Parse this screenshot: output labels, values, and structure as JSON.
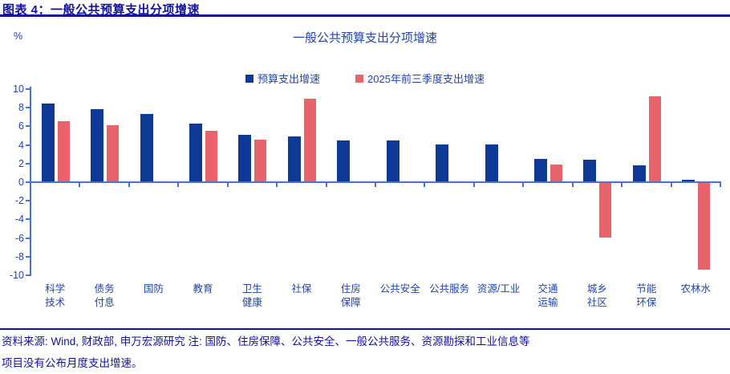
{
  "header": {
    "title": "图表 4：一般公共预算支出分项增速"
  },
  "footer": {
    "line1": "资料来源: Wind, 财政部, 申万宏源研究 注: 国防、住房保障、公共安全、一般公共服务、资源勘探和工业信息等",
    "line2": "项目没有公布月度支出增速。"
  },
  "colors": {
    "navy_text": "#12129b",
    "chart_text": "#2445a3",
    "axis_line": "#4a74cc",
    "budget_bar": "#0e3a96",
    "ytd_bar": "#e8636b"
  },
  "chart_data": {
    "type": "bar",
    "title": "一般公共预算支出分项增速",
    "unit_label": "%",
    "categories": [
      "科学技术",
      "债务付息",
      "国防",
      "教育",
      "卫生健康",
      "社保",
      "住房保障",
      "公共安全",
      "公共服务",
      "资源/工业",
      "交通运输",
      "城乡社区",
      "节能环保",
      "农林水"
    ],
    "category_label_lines": [
      [
        "科学",
        "技术"
      ],
      [
        "债务",
        "付息"
      ],
      [
        "国防"
      ],
      [
        "教育"
      ],
      [
        "卫生",
        "健康"
      ],
      [
        "社保"
      ],
      [
        "住房",
        "保障"
      ],
      [
        "公共安全"
      ],
      [
        "公共服务"
      ],
      [
        "资源/工业"
      ],
      [
        "交通",
        "运输"
      ],
      [
        "城乡",
        "社区"
      ],
      [
        "节能",
        "环保"
      ],
      [
        "农林水"
      ]
    ],
    "series": [
      {
        "name": "预算支出增速",
        "color": "#0e3a96",
        "values": [
          8.4,
          7.8,
          7.2,
          6.2,
          5.0,
          4.8,
          4.4,
          4.4,
          4.0,
          4.0,
          2.4,
          2.3,
          1.7,
          0.2
        ]
      },
      {
        "name": "2025年前三季度支出增速",
        "color": "#e8636b",
        "values": [
          6.5,
          6.0,
          null,
          5.4,
          4.5,
          8.9,
          null,
          null,
          null,
          null,
          1.8,
          -5.9,
          9.1,
          -9.3
        ]
      }
    ],
    "y_ticks": [
      10,
      8,
      6,
      4,
      2,
      0,
      -2,
      -4,
      -6,
      -8,
      -10
    ],
    "ylim": [
      -10,
      10
    ],
    "grid": false,
    "legend_position": "top-center"
  }
}
